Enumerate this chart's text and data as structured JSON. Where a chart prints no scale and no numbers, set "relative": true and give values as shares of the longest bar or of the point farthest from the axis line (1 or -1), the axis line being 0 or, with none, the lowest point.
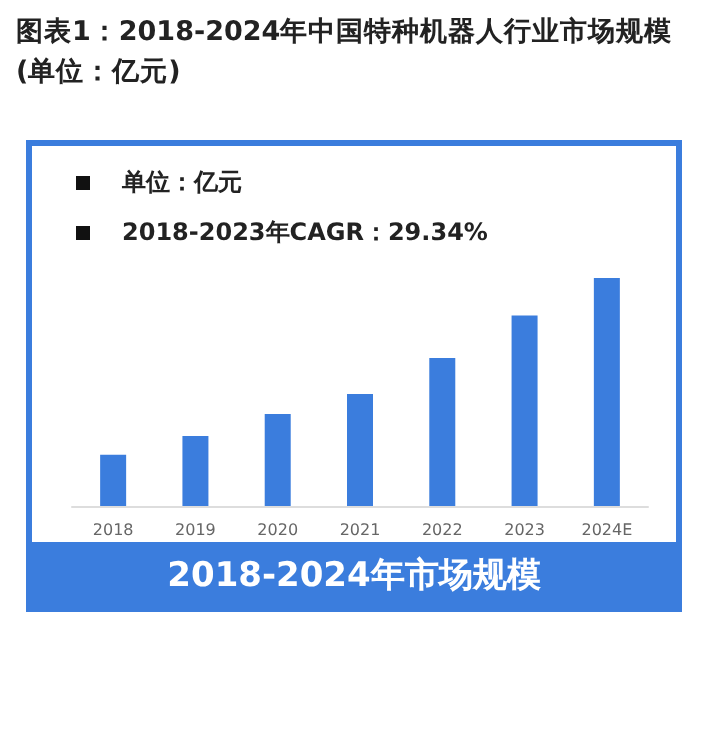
{
  "chart_data": {
    "type": "bar",
    "title": "图表1：2018-2024年中国特种机器人行业市场规模(单位：亿元)",
    "subtitle": "2018-2024年市场规模",
    "annotations": [
      "单位：亿元",
      "2018-2023年CAGR：29.34%"
    ],
    "categories": [
      "2018",
      "2019",
      "2020",
      "2021",
      "2022",
      "2023",
      "2024E"
    ],
    "values": [
      0.225,
      0.307,
      0.404,
      0.491,
      0.649,
      0.836,
      1
    ],
    "color": "#3b7ddd",
    "relative": true
  }
}
